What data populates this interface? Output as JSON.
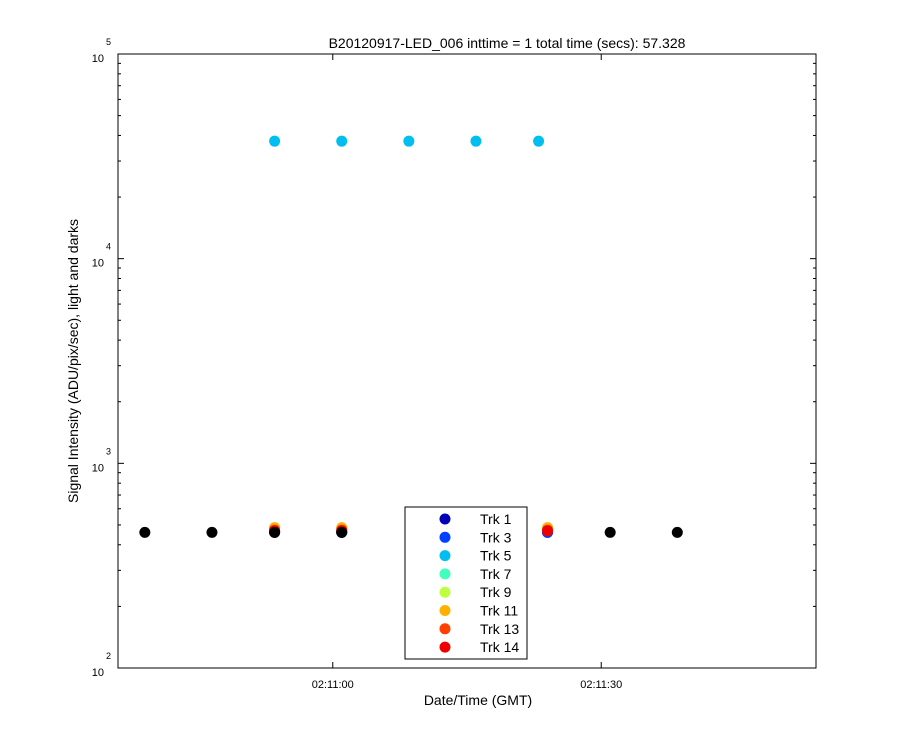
{
  "chart_data": {
    "type": "scatter",
    "title": "B20120917-LED_006 inttime = 1 total time (secs): 57.328",
    "xlabel": "Date/Time (GMT)",
    "ylabel": "Signal Intensity (ADU/pix/sec), light and darks",
    "y_scale": "log",
    "ylim": [
      100,
      100000
    ],
    "y_ticks": [
      {
        "base": "10",
        "exp": "2",
        "value": 100
      },
      {
        "base": "10",
        "exp": "3",
        "value": 1000
      },
      {
        "base": "10",
        "exp": "4",
        "value": 10000
      },
      {
        "base": "10",
        "exp": "5",
        "value": 100000
      }
    ],
    "xlim": [
      "02:10:36",
      "02:11:54"
    ],
    "x_ticks": [
      "02:11:00",
      "02:11:30"
    ],
    "series": [
      {
        "name": "Trk 1",
        "color": "#0000b4",
        "x": [
          "02:10:53.5",
          "02:11:01",
          "02:11:24"
        ],
        "y": [
          460,
          460,
          460
        ]
      },
      {
        "name": "Trk 3",
        "color": "#0040ff",
        "x": [
          "02:10:53.5",
          "02:11:01",
          "02:11:24"
        ],
        "y": [
          460,
          460,
          460
        ]
      },
      {
        "name": "Trk 5",
        "color": "#00bff0",
        "x": [
          "02:10:53.5",
          "02:11:01",
          "02:11:08.5",
          "02:11:16",
          "02:11:23"
        ],
        "y": [
          37500,
          37500,
          37500,
          37500,
          37500
        ]
      },
      {
        "name": "Trk 7",
        "color": "#40ffbf",
        "x": [
          "02:10:53.5",
          "02:11:01",
          "02:11:24"
        ],
        "y": [
          478,
          478,
          478
        ]
      },
      {
        "name": "Trk 9",
        "color": "#bfff40",
        "x": [
          "02:10:53.5",
          "02:11:01",
          "02:11:24"
        ],
        "y": [
          482,
          482,
          482
        ]
      },
      {
        "name": "Trk 11",
        "color": "#ffb000",
        "x": [
          "02:10:53.5",
          "02:11:01",
          "02:11:24"
        ],
        "y": [
          485,
          485,
          485
        ]
      },
      {
        "name": "Trk 13",
        "color": "#ff4000",
        "x": [
          "02:10:53.5",
          "02:11:01",
          "02:11:24"
        ],
        "y": [
          472,
          472,
          472
        ]
      },
      {
        "name": "Trk 14",
        "color": "#ee0000",
        "x": [
          "02:10:53.5",
          "02:11:01",
          "02:11:24"
        ],
        "y": [
          468,
          468,
          468
        ]
      },
      {
        "name": "",
        "color": "#000000",
        "x": [
          "02:10:39",
          "02:10:46.5",
          "02:10:53.5",
          "02:11:01",
          "02:11:31",
          "02:11:38.5"
        ],
        "y": [
          460,
          460,
          460,
          460,
          460,
          460
        ]
      }
    ],
    "legend": {
      "position": "bottom-center"
    },
    "grid": false
  }
}
